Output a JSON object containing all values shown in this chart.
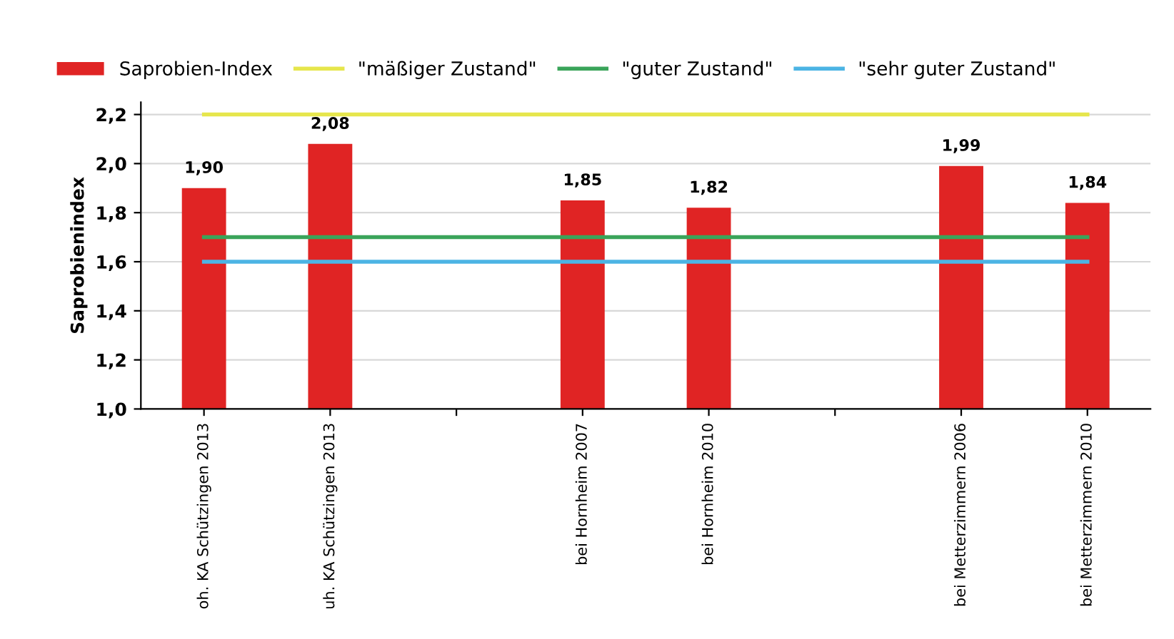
{
  "chart_data": {
    "type": "bar",
    "ylabel": "Saprobienindex",
    "categories": [
      "oh. KA Schützingen 2013",
      "uh. KA Schützingen 2013",
      null,
      "bei Hornheim 2007",
      "bei Hornheim 2010",
      null,
      "bei Metterzimmern 2006",
      "bei Metterzimmern 2010"
    ],
    "series": [
      {
        "name": "Saprobien-Index",
        "color": "#e02424",
        "values": [
          1.9,
          2.08,
          1.0,
          1.85,
          1.82,
          1.0,
          1.99,
          1.84
        ],
        "value_labels": [
          "1,90",
          "2,08",
          null,
          "1,85",
          "1,82",
          null,
          "1,99",
          "1,84"
        ]
      },
      {
        "name": "\"mäßiger Zustand\"",
        "type": "line",
        "color": "#e6e64c",
        "values": [
          2.2,
          2.2,
          2.2,
          2.2,
          2.2,
          2.2,
          2.2,
          2.2
        ]
      },
      {
        "name": "\"guter Zustand\"",
        "type": "line",
        "color": "#3aa45a",
        "values": [
          1.7,
          1.7,
          1.7,
          1.7,
          1.7,
          1.7,
          1.7,
          1.7
        ]
      },
      {
        "name": "\"sehr guter Zustand\"",
        "type": "line",
        "color": "#4cb4e4",
        "values": [
          1.6,
          1.6,
          1.6,
          1.6,
          1.6,
          1.6,
          1.6,
          1.6
        ]
      }
    ],
    "ylim": [
      1.0,
      2.25
    ],
    "yticks": [
      {
        "value": 1.0,
        "label": "1,0"
      },
      {
        "value": 1.2,
        "label": "1,2"
      },
      {
        "value": 1.4,
        "label": "1,4"
      },
      {
        "value": 1.6,
        "label": "1,6"
      },
      {
        "value": 1.8,
        "label": "1,8"
      },
      {
        "value": 2.0,
        "label": "2,0"
      },
      {
        "value": 2.2,
        "label": "2,2"
      }
    ],
    "grid": "y",
    "legend": "top left"
  }
}
